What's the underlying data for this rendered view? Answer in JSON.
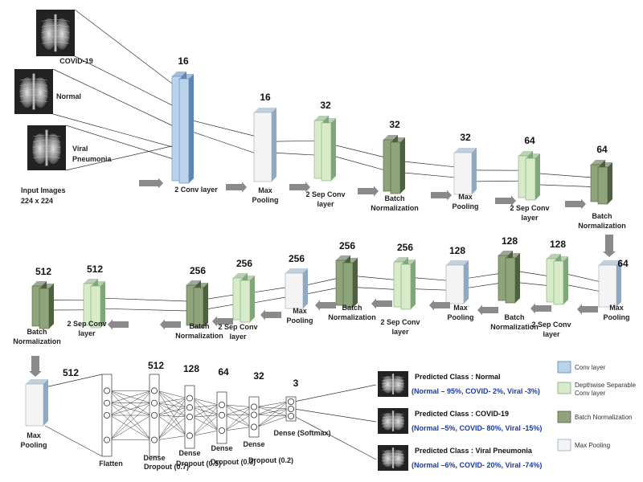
{
  "colors": {
    "conv": "#b9d3ec",
    "conv_dark": "#5d86b5",
    "sep": "#d7ebc8",
    "sep_dark": "#7fa87a",
    "batch": "#8fa47a",
    "batch_dark": "#4d6040",
    "pool": "#f4f4f4",
    "pool_dark": "#8fa9c3",
    "arrow": "#8a8a8a",
    "prob_text": "#1a3aa8"
  },
  "inputs": {
    "images": [
      {
        "label": "COVID-19",
        "icon": "chest-xray-icon"
      },
      {
        "label": "Normal",
        "icon": "chest-xray-icon"
      },
      {
        "label": "Viral Pneumonia",
        "icon": "chest-xray-icon"
      }
    ],
    "caption_line1": "Input Images",
    "caption_line2": "224 x 224"
  },
  "row1": {
    "filters": [
      "16",
      "16",
      "32",
      "32",
      "32",
      "64",
      "64"
    ],
    "labels": [
      [
        "2 Conv layer"
      ],
      [
        "Max",
        "Pooling"
      ],
      [
        "2 Sep Conv",
        "layer"
      ],
      [
        "Batch",
        "Normalization"
      ],
      [
        "Max",
        "Pooling"
      ],
      [
        "2 Sep Conv",
        "layer"
      ],
      [
        "Batch",
        "Normalization"
      ]
    ]
  },
  "row2": {
    "filters": [
      "64",
      "128",
      "128",
      "128",
      "256",
      "256",
      "256",
      "256",
      "256",
      "512",
      "512"
    ],
    "labels": [
      [
        "Max",
        "Pooling"
      ],
      [
        "2 Sep Conv",
        "layer"
      ],
      [
        "Batch",
        "Normalization"
      ],
      [
        "Max",
        "Pooling"
      ],
      [
        "2 Sep Conv",
        "layer"
      ],
      [
        "Batch",
        "Normalization"
      ],
      [
        "Max",
        "Pooling"
      ],
      [
        "2 Sep Conv",
        "layer"
      ],
      [
        "Batch",
        "Normalization"
      ],
      [
        "2 Sep Conv",
        "layer"
      ],
      [
        "Batch",
        "Normalization"
      ]
    ]
  },
  "row3": {
    "pool_filter": "512",
    "pool_label": [
      "Max",
      "Pooling"
    ],
    "flatten_label": "Flatten",
    "dense_units": [
      "512",
      "128",
      "64",
      "32",
      "3"
    ],
    "dense_labels": [
      "Dense",
      "Dense",
      "Dense",
      "Dense",
      "Dense (Softmax)"
    ],
    "dropout_labels": [
      "Dropout (0.7)",
      "Dropout (0.5)",
      "Dropout (0.3)",
      "Dropout (0.2)"
    ]
  },
  "predictions": [
    {
      "title": "Predicted Class : Normal",
      "probs": "(Normal – 95%, COVID- 2%, Viral -3%)"
    },
    {
      "title": "Predicted Class : COVID-19",
      "probs": "(Normal –5%, COVID- 80%, Viral -15%)"
    },
    {
      "title": "Predicted Class : Viral Pneumonia",
      "probs": "(Normal –6%, COVID- 20%, Viral -74%)"
    }
  ],
  "legend": [
    {
      "label": "Conv layer",
      "kind": "conv"
    },
    {
      "label": "Depthwise Separable Conv layer",
      "kind": "sep"
    },
    {
      "label": "Batch Normalization",
      "kind": "batch"
    },
    {
      "label": "Max Pooling",
      "kind": "pool"
    }
  ]
}
